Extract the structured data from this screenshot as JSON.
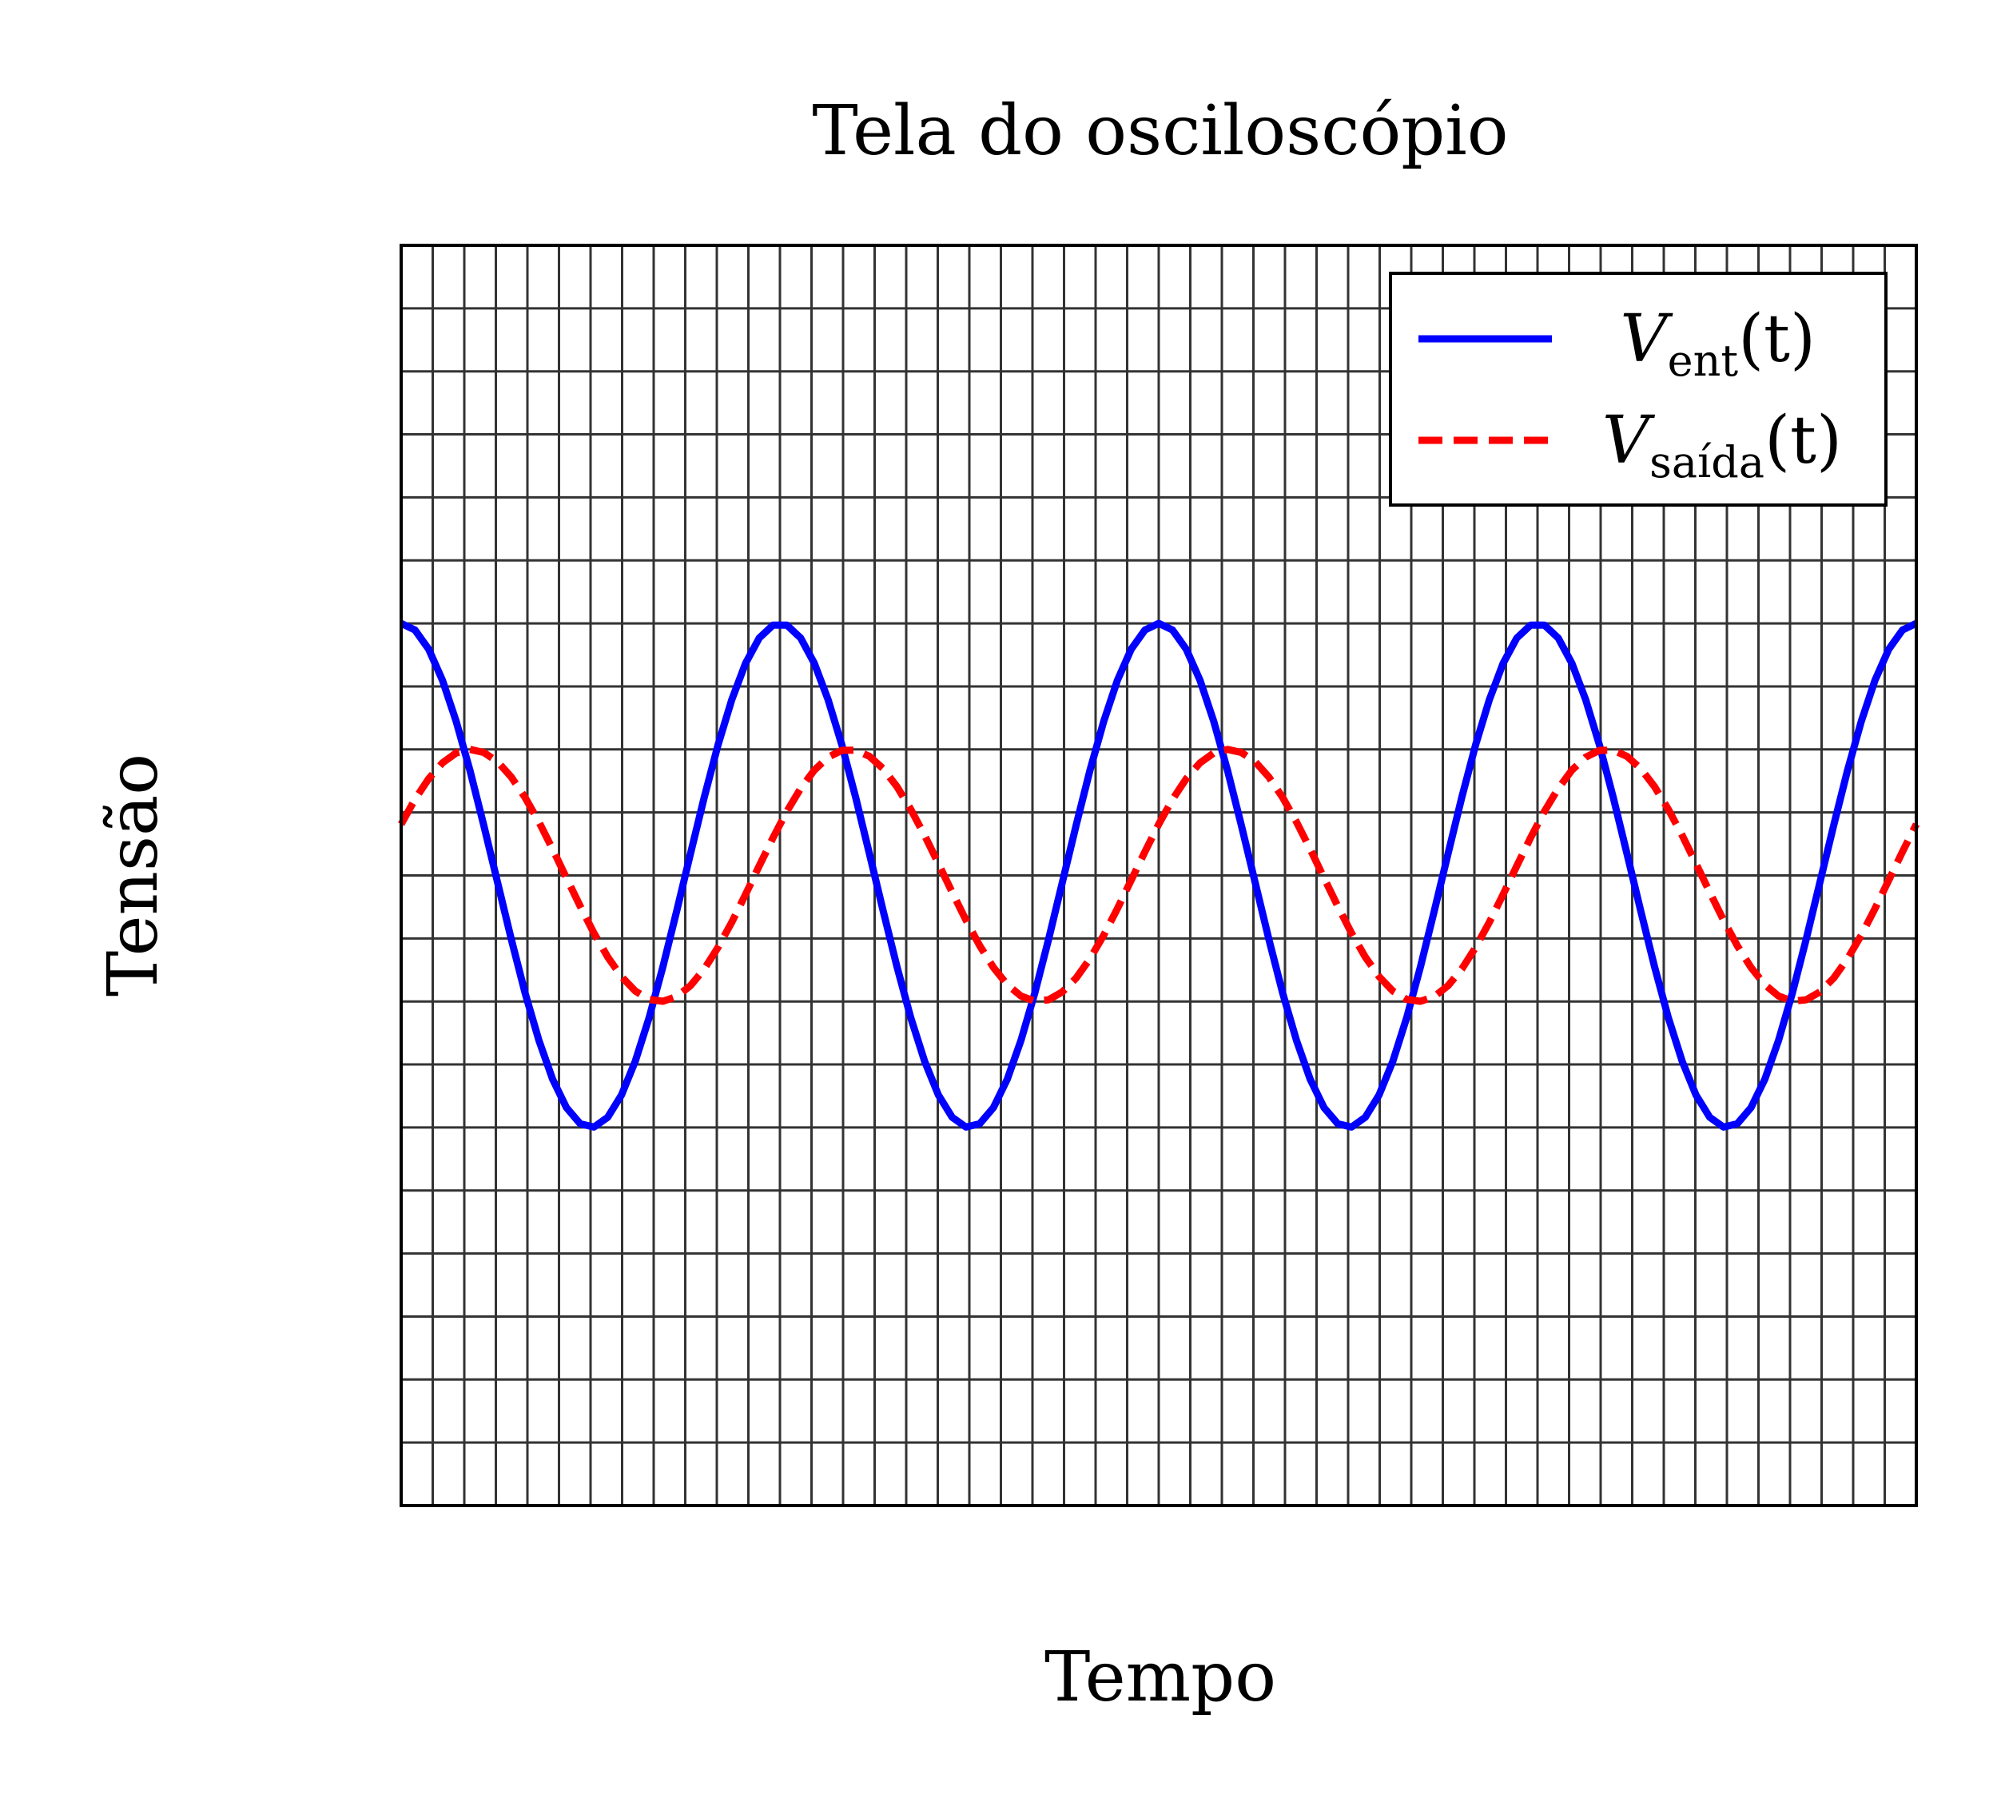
{
  "chart_data": {
    "type": "line",
    "title": "Tela do osciloscópio",
    "xlabel": "Tempo",
    "ylabel": "Tensão",
    "xlim": [
      0,
      12
    ],
    "ylim": [
      -7,
      3
    ],
    "grid": true,
    "grid_minor_x_step": 0.25,
    "grid_minor_y_step": 0.5,
    "legend_position": "top-right",
    "series": [
      {
        "name": "V_ent(t)",
        "legend_main": "V",
        "legend_sub": "ent",
        "legend_tail": "(t)",
        "color": "#0000ff",
        "style": "solid",
        "function": "cos",
        "amplitude": 2,
        "period": 3,
        "phase_x": 0,
        "offset": -2
      },
      {
        "name": "V_saída(t)",
        "legend_main": "V",
        "legend_sub": "saída",
        "legend_tail": "(t)",
        "color": "#ff0000",
        "style": "dashed",
        "function": "cos",
        "amplitude": 1,
        "period": 3,
        "phase_x": 0.55,
        "offset": -2
      }
    ]
  }
}
